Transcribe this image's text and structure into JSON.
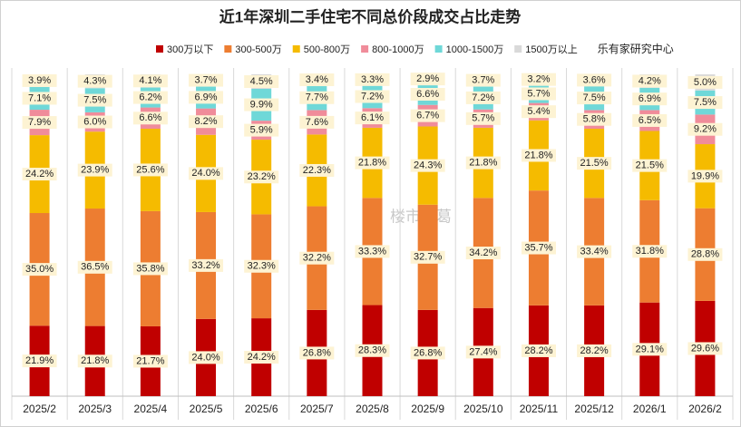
{
  "chart_data": {
    "type": "stacked_bar",
    "title": "近1年深圳二手住宅不同总价段成交占比走势",
    "source": "乐有家研究中心",
    "watermark": "楼市诸葛",
    "categories": [
      "2025/2",
      "2025/3",
      "2025/4",
      "2025/5",
      "2025/6",
      "2025/7",
      "2025/8",
      "2025/9",
      "2025/10",
      "2025/11",
      "2025/12",
      "2026/1",
      "2026/2"
    ],
    "series": [
      {
        "name": "300万以下",
        "color": "#c00000",
        "values": [
          21.9,
          21.8,
          21.7,
          24.0,
          24.2,
          26.8,
          28.3,
          26.8,
          27.4,
          28.2,
          28.2,
          29.1,
          29.6
        ],
        "value_labels": [
          "21.9%",
          "21.8%",
          "21.7%",
          "24.0%",
          "24.2%",
          "26.8%",
          "28.3%",
          "26.8%",
          "27.4%",
          "28.2%",
          "28.2%",
          "29.1%",
          "29.6%"
        ]
      },
      {
        "name": "300-500万",
        "color": "#ed7d31",
        "values": [
          35.0,
          36.5,
          35.8,
          33.2,
          32.3,
          32.2,
          33.3,
          32.7,
          34.2,
          35.7,
          33.4,
          31.8,
          28.8
        ],
        "value_labels": [
          "35.0%",
          "36.5%",
          "35.8%",
          "33.2%",
          "32.3%",
          "32.2%",
          "33.3%",
          "32.7%",
          "34.2%",
          "35.7%",
          "33.4%",
          "31.8%",
          "28.8%"
        ]
      },
      {
        "name": "500-800万",
        "color": "#f5bb00",
        "values": [
          24.2,
          23.9,
          25.6,
          24.0,
          23.2,
          22.3,
          21.8,
          24.3,
          21.8,
          21.8,
          21.5,
          21.5,
          19.9
        ],
        "value_labels": [
          "24.2%",
          "23.9%",
          "25.6%",
          "24.0%",
          "23.2%",
          "22.3%",
          "21.8%",
          "24.3%",
          "21.8%",
          "21.8%",
          "21.5%",
          "21.5%",
          "19.9%"
        ]
      },
      {
        "name": "800-1000万",
        "color": "#f08c9a",
        "values": [
          7.9,
          6.0,
          6.6,
          8.2,
          5.9,
          7.6,
          6.1,
          6.7,
          5.7,
          5.4,
          5.8,
          6.5,
          9.2
        ],
        "value_labels": [
          "7.9%",
          "6.0%",
          "6.6%",
          "8.2%",
          "5.9%",
          "7.6%",
          "6.1%",
          "6.7%",
          "5.7%",
          "5.4%",
          "5.8%",
          "6.5%",
          "9.2%"
        ]
      },
      {
        "name": "1000-1500万",
        "color": "#6fd8d8",
        "values": [
          7.1,
          7.5,
          6.2,
          6.9,
          9.9,
          7.7,
          7.2,
          6.6,
          7.2,
          5.7,
          7.5,
          6.9,
          7.5
        ],
        "value_labels": [
          "7.1%",
          "7.5%",
          "6.2%",
          "6.9%",
          "9.9%",
          "7.7%",
          "7.2%",
          "6.6%",
          "7.2%",
          "5.7%",
          "7.5%",
          "6.9%",
          "7.5%"
        ]
      },
      {
        "name": "1500万以上",
        "color": "#d9d9d9",
        "values": [
          3.9,
          4.3,
          4.1,
          3.7,
          4.5,
          3.4,
          3.3,
          2.9,
          3.7,
          3.2,
          3.6,
          4.2,
          5.0
        ],
        "value_labels": [
          "3.9%",
          "4.3%",
          "4.1%",
          "3.7%",
          "4.5%",
          "3.4%",
          "3.3%",
          "2.9%",
          "3.7%",
          "3.2%",
          "3.6%",
          "4.2%",
          "5.0%"
        ]
      }
    ]
  }
}
